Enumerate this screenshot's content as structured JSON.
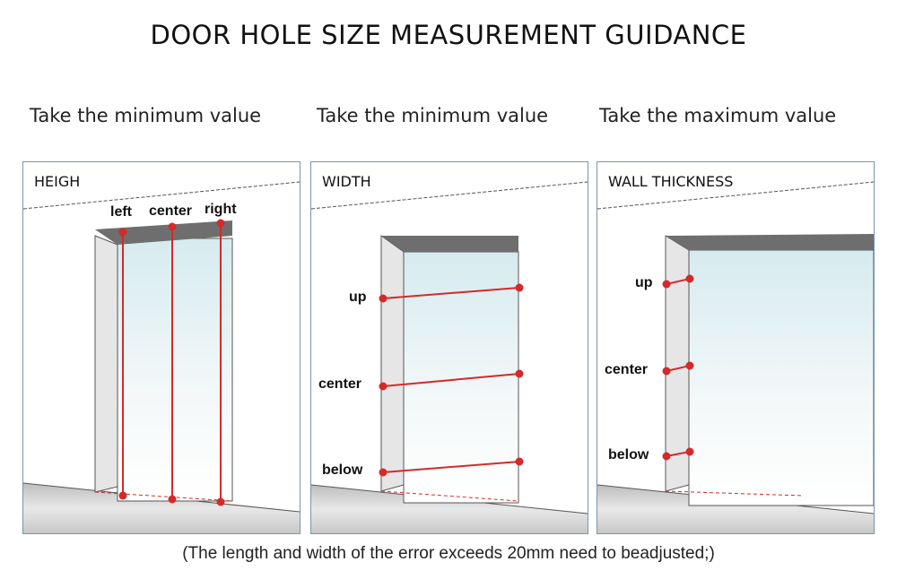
{
  "title": "DOOR HOLE SIZE MEASUREMENT GUIDANCE",
  "panels": [
    {
      "rule": "Take the minimum value",
      "heading": "HEIGH",
      "labels": [
        "left",
        "center",
        "right"
      ]
    },
    {
      "rule": "Take the minimum value",
      "heading": "WIDTH",
      "labels": [
        "up",
        "center",
        "below"
      ]
    },
    {
      "rule": "Take the maximum value",
      "heading": "WALL THICKNESS",
      "labels": [
        "up",
        "center",
        "below"
      ]
    }
  ],
  "note": "(The length and width of the error exceeds 20mm need to beadjusted;)",
  "colors": {
    "measure_line": "#d42a2a",
    "frame": "#7a95a6",
    "lintel": "#6e6e6e"
  }
}
